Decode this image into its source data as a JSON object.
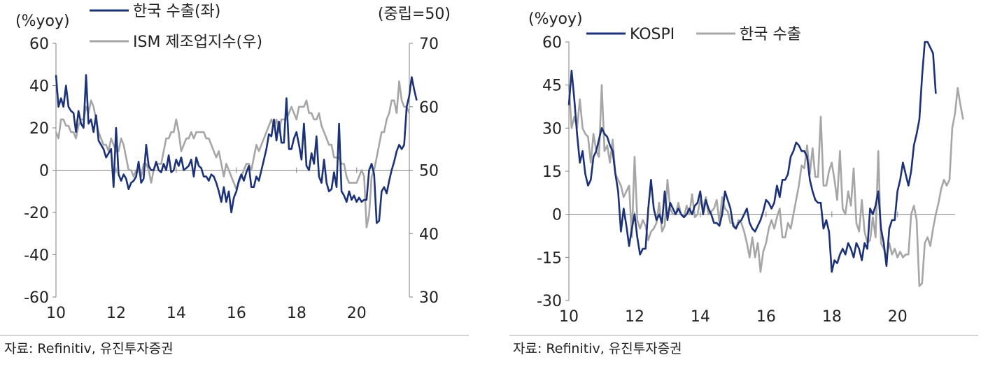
{
  "colors": {
    "navy": "#1c3278",
    "gray": "#a6a6a6",
    "axis": "#7f7f7f",
    "text": "#222222"
  },
  "chart_data": [
    {
      "type": "line",
      "left_unit": "(%yoy)",
      "right_unit": "(중립=50)",
      "source": "자료: Refinitiv, 유진투자증권",
      "x_ticks": [
        "10",
        "12",
        "14",
        "16",
        "18",
        "20"
      ],
      "xlim": [
        2010,
        2021.75
      ],
      "ylim": [
        -60,
        60
      ],
      "y_ticks": [
        "60",
        "40",
        "20",
        "0",
        "-20",
        "-40",
        "-60"
      ],
      "y2lim": [
        30,
        70
      ],
      "y2_ticks": [
        "70",
        "60",
        "50",
        "40",
        "30"
      ],
      "series": [
        {
          "name": "한국 수출(좌)",
          "axis": "left",
          "color": "#1c3278",
          "x0": 2010,
          "step": 0.0833,
          "values": [
            45,
            30,
            34,
            30,
            40,
            30,
            28,
            27,
            18,
            28,
            22,
            20,
            45,
            22,
            24,
            18,
            26,
            14,
            12,
            10,
            6,
            8,
            10,
            -8,
            20,
            -2,
            -5,
            -2,
            -4,
            -9,
            -6,
            -5,
            -3,
            4,
            -6,
            -4,
            12,
            2,
            0,
            0,
            4,
            0,
            -1,
            3,
            0,
            7,
            -1,
            0,
            5,
            2,
            6,
            0,
            1,
            2,
            5,
            -3,
            6,
            2,
            1,
            -3,
            -3,
            -5,
            -2,
            -3,
            -6,
            -10,
            -15,
            -8,
            -15,
            -10,
            -20,
            -13,
            -10,
            -5,
            -2,
            -5,
            -1,
            2,
            -8,
            -8,
            -3,
            -5,
            0,
            5,
            10,
            17,
            16,
            24,
            14,
            23,
            13,
            13,
            34,
            10,
            10,
            15,
            18,
            12,
            5,
            22,
            2,
            0,
            8,
            3,
            16,
            -3,
            -6,
            5,
            -6,
            -10,
            -9,
            -1,
            -8,
            22,
            -10,
            -12,
            -15,
            -10,
            -14,
            -12,
            -15,
            -13,
            -15,
            -14,
            -14,
            0,
            3,
            -2,
            -25,
            -24,
            -10,
            -8,
            -11,
            -5,
            0,
            4,
            9,
            12,
            10,
            12,
            30,
            35,
            44,
            38,
            33
          ]
        },
        {
          "name": "ISM 제조업지수(우)",
          "axis": "right",
          "color": "#a6a6a6",
          "x0": 2010,
          "step": 0.0833,
          "values": [
            56,
            55,
            58,
            58,
            57,
            57,
            56,
            56,
            55,
            57,
            58,
            58,
            60,
            59,
            61,
            60,
            58,
            56,
            55,
            54,
            54,
            53,
            55,
            54,
            53,
            53,
            55,
            54,
            52,
            50,
            50,
            49,
            50,
            50,
            49,
            51,
            51,
            50,
            48,
            50,
            51,
            51,
            51,
            53,
            55,
            55,
            56,
            56,
            58,
            56,
            53,
            54,
            55,
            55,
            56,
            55,
            56,
            56,
            56,
            56,
            55,
            55,
            54,
            53,
            52,
            53,
            51,
            49,
            51,
            50,
            49,
            48,
            47,
            48,
            49,
            50,
            51,
            51,
            50,
            52,
            54,
            53,
            54,
            55,
            56,
            57,
            58,
            57,
            58,
            56,
            58,
            58,
            58,
            59,
            60,
            59,
            58,
            60,
            60,
            60,
            61,
            59,
            59,
            58,
            58,
            59,
            57,
            56,
            55,
            54,
            54,
            52,
            52,
            52,
            51,
            51,
            49,
            48,
            48,
            48,
            48,
            49,
            50,
            49,
            41,
            43,
            49,
            50,
            52,
            54,
            56,
            56,
            58,
            59,
            61,
            61,
            59,
            64,
            61,
            60,
            60,
            59
          ]
        }
      ]
    },
    {
      "type": "line",
      "left_unit": "(%yoy)",
      "source": "자료: Refinitiv, 유진투자증권",
      "x_ticks": [
        "10",
        "12",
        "14",
        "16",
        "18",
        "20"
      ],
      "xlim": [
        2010,
        2021.75
      ],
      "ylim": [
        -30,
        60
      ],
      "y_ticks": [
        "60",
        "45",
        "30",
        "15",
        "0",
        "-15",
        "-30"
      ],
      "series": [
        {
          "name": "KOSPI",
          "axis": "left",
          "color": "#1c3278",
          "x0": 2010,
          "step": 0.0833,
          "values": [
            38,
            50,
            40,
            28,
            18,
            22,
            14,
            10,
            12,
            20,
            22,
            26,
            30,
            28,
            27,
            24,
            22,
            14,
            8,
            -6,
            2,
            -4,
            -11,
            -5,
            0,
            -8,
            -14,
            -12,
            -12,
            2,
            12,
            2,
            -2,
            0,
            -3,
            8,
            -2,
            4,
            2,
            0,
            2,
            0,
            -1,
            0,
            2,
            0,
            3,
            4,
            8,
            0,
            5,
            2,
            0,
            -3,
            -3,
            -4,
            0,
            8,
            5,
            2,
            -4,
            -5,
            -3,
            -2,
            0,
            2,
            -3,
            -5,
            -6,
            -4,
            -2,
            1,
            5,
            4,
            2,
            4,
            10,
            6,
            12,
            12,
            14,
            20,
            22,
            25,
            24,
            22,
            22,
            20,
            12,
            8,
            5,
            4,
            4,
            -5,
            -2,
            -6,
            -20,
            -16,
            -17,
            -14,
            -12,
            -14,
            -10,
            -12,
            -15,
            -10,
            -12,
            -16,
            -10,
            -12,
            2,
            0,
            3,
            8,
            -5,
            -10,
            -18,
            -5,
            -2,
            -2,
            8,
            12,
            18,
            14,
            10,
            15,
            24,
            28,
            33,
            48,
            60,
            60,
            58,
            56,
            42
          ]
        },
        {
          "name": "한국 수출",
          "axis": "left",
          "color": "#a6a6a6",
          "x0": 2010,
          "step": 0.0833,
          "values": [
            45,
            30,
            34,
            30,
            40,
            30,
            28,
            27,
            18,
            28,
            22,
            20,
            45,
            22,
            24,
            18,
            26,
            14,
            12,
            10,
            6,
            8,
            10,
            -8,
            20,
            -2,
            -5,
            -2,
            -4,
            -9,
            -6,
            -5,
            -3,
            4,
            -6,
            -4,
            12,
            2,
            0,
            0,
            4,
            0,
            -1,
            3,
            0,
            7,
            -1,
            0,
            5,
            2,
            6,
            0,
            1,
            2,
            5,
            -3,
            6,
            2,
            1,
            -3,
            -3,
            -5,
            -2,
            -3,
            -6,
            -10,
            -15,
            -8,
            -15,
            -10,
            -20,
            -13,
            -10,
            -5,
            -2,
            -5,
            -1,
            2,
            -8,
            -8,
            -3,
            -5,
            0,
            5,
            10,
            17,
            16,
            24,
            14,
            23,
            13,
            13,
            34,
            10,
            10,
            15,
            18,
            12,
            5,
            22,
            2,
            0,
            8,
            3,
            16,
            -3,
            -6,
            5,
            -6,
            -10,
            -9,
            -1,
            -8,
            22,
            -10,
            -12,
            -15,
            -10,
            -14,
            -12,
            -15,
            -13,
            -15,
            -14,
            -14,
            0,
            3,
            -2,
            -25,
            -24,
            -10,
            -8,
            -11,
            -5,
            0,
            4,
            9,
            12,
            10,
            12,
            30,
            35,
            44,
            38,
            33
          ]
        }
      ]
    }
  ]
}
